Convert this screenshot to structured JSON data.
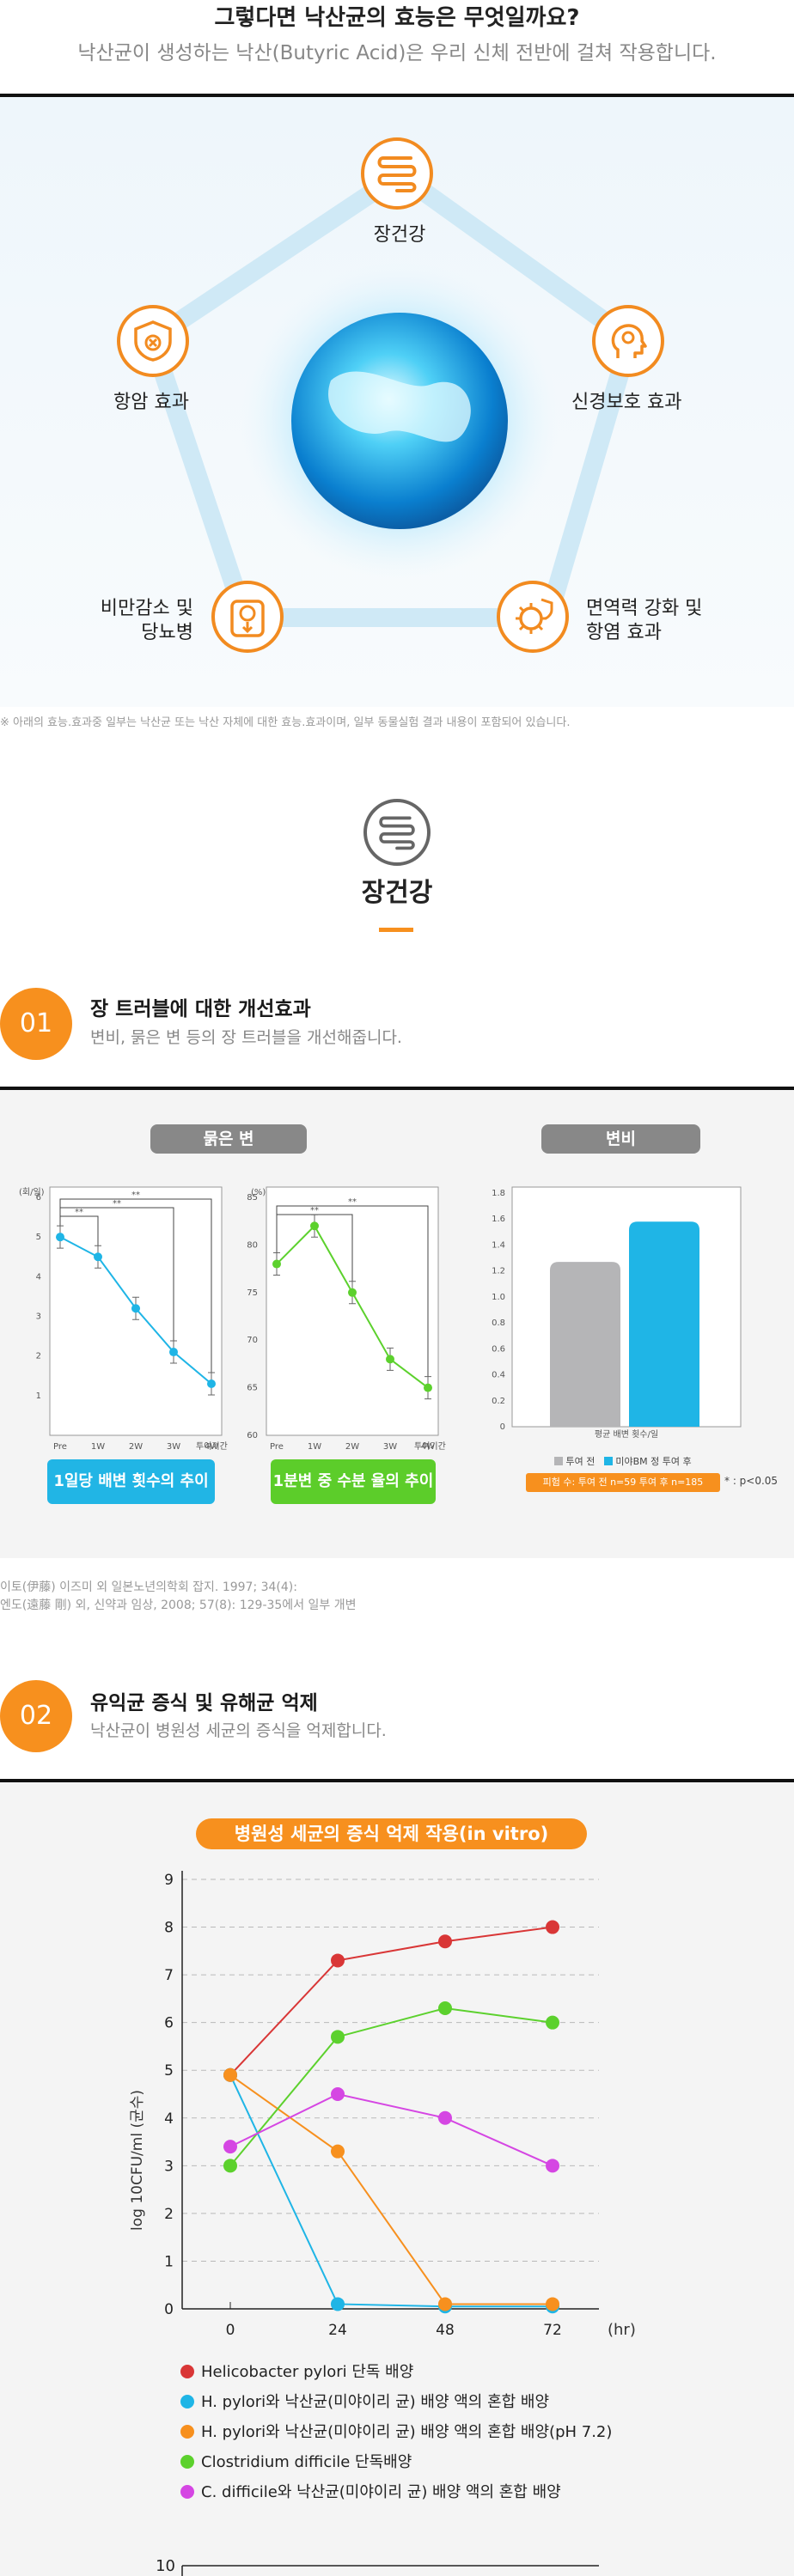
{
  "header": {
    "title": "그렇다면 낙산균의 효능은 무엇일까요?",
    "subtitle": "낙산균이 생성하는 낙산(Butyric Acid)은 우리 신체 전반에 걸쳐 작용합니다."
  },
  "benefits": {
    "top": "장건강",
    "left": "항암 효과",
    "right": "신경보호 효과",
    "bottom_left_1": "비만감소 및",
    "bottom_left_2": "당뇨병",
    "bottom_right_1": "면역력 강화 및",
    "bottom_right_2": "항염 효과",
    "note": "※ 아래의 효능.효과중 일부는 낙산균 또는 낙산 자체에 대한 효능.효과이며, 일부 동물실험 결과 내용이 포함되어 있습니다."
  },
  "gut_section": {
    "title": "장건강"
  },
  "item1": {
    "num": "01",
    "title": "장 트러블에 대한 개선효과",
    "desc": "변비, 묽은 변 등의 장 트러블을 개선해줍니다.",
    "loose_stool_label": "묽은 변",
    "constipation_label": "변비",
    "btn1": "1일당 배변 횟수의 추이",
    "btn2": "1분변 중 수분 율의 추이",
    "sig_note": "* : p<0.05",
    "ref1": "이토(伊藤) 이즈미 외 일본노년의학회 잡지. 1997; 34(4):",
    "ref2": "엔도(遠藤 剛) 외, 신약과 임상, 2008; 57(8): 129-35에서 일부 개변"
  },
  "item2": {
    "num": "02",
    "title": "유익균 증식 및 유해균 억제",
    "desc": "낙산균이 병원성 세균의 증식을 억제합니다.",
    "chart_title": "병원성 세균의 증식 억제 작용(in vitro)"
  },
  "colors": {
    "orange": "#f7901e",
    "blue": "#1fb5e6",
    "green": "#5cd12d",
    "red": "#d93636",
    "magenta": "#d546e3",
    "gray_bar": "#b5b5b7"
  },
  "chart_data": [
    {
      "type": "line",
      "ylabel": "(회/일)",
      "x": [
        "Pre",
        "1W",
        "2W",
        "3W",
        "4W"
      ],
      "xlabel": "투여기간",
      "ylim": [
        0,
        6
      ],
      "series": [
        {
          "values": [
            5.0,
            4.5,
            3.2,
            2.1,
            1.3
          ]
        }
      ]
    },
    {
      "type": "line",
      "ylabel": "(%)",
      "x": [
        "Pre",
        "1W",
        "2W",
        "3W",
        "4W"
      ],
      "xlabel": "투여기간",
      "ylim": [
        60,
        85
      ],
      "series": [
        {
          "values": [
            78,
            82,
            75,
            68,
            65
          ]
        }
      ]
    },
    {
      "type": "bar",
      "categories": [
        "평균 배변 횟수/일"
      ],
      "ylim": [
        0,
        1.8
      ],
      "series": [
        {
          "name": "투여 전",
          "values": [
            1.27
          ]
        },
        {
          "name": "미야BM 정 투여 후",
          "values": [
            1.58
          ]
        }
      ],
      "annotation": "피험 수: 투여 전 n=59 투여 후 n=185"
    },
    {
      "type": "line",
      "title": "병원성 세균의 증식 억제 작용(in vitro)",
      "ylabel": "log 10CFU/ml (균수)",
      "xlabel": "(hr)",
      "x": [
        0,
        24,
        48,
        72
      ],
      "ylim": [
        0,
        9
      ],
      "series": [
        {
          "name": "Helicobacter pylori 단독 배양",
          "values": [
            4.9,
            7.3,
            7.7,
            8.0
          ]
        },
        {
          "name": "H. pylori와 낙산균(미야이리 균) 배양 액의 혼합 배양",
          "values": [
            4.9,
            0.1,
            0.05,
            0.05
          ]
        },
        {
          "name": "H. pylori와 낙산균(미야이리 균) 배양 액의 혼합 배양(pH 7.2)",
          "values": [
            4.9,
            3.3,
            0.1,
            0.1
          ]
        },
        {
          "name": "Clostridium difficile 단독배양",
          "values": [
            3.0,
            5.7,
            6.3,
            6.0
          ]
        },
        {
          "name": "C. difficile와 낙산균(미야이리 균) 배양 액의 혼합 배양",
          "values": [
            3.4,
            4.5,
            4.0,
            3.0
          ]
        }
      ]
    }
  ],
  "next_chart_tick": "10"
}
